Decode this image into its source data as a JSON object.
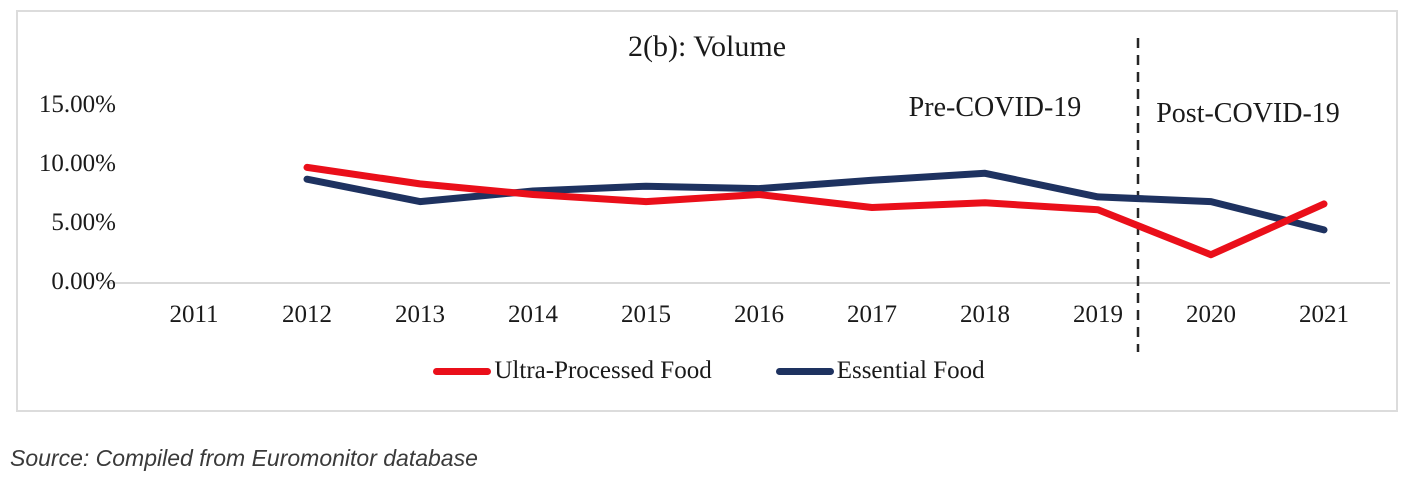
{
  "figure": {
    "source_note": "Source: Compiled from Euromonitor database"
  },
  "chart_data": {
    "type": "line",
    "title": "2(b): Volume",
    "unit": "percent",
    "categories": [
      "2011",
      "2012",
      "2013",
      "2014",
      "2015",
      "2016",
      "2017",
      "2018",
      "2019",
      "2020",
      "2021"
    ],
    "series": [
      {
        "name": "Ultra-Processed Food",
        "color": "#ea0f1a",
        "values": [
          null,
          9.8,
          8.4,
          7.5,
          6.9,
          7.5,
          6.4,
          6.8,
          6.2,
          2.4,
          6.7
        ]
      },
      {
        "name": "Essential Food",
        "color": "#1e3260",
        "values": [
          null,
          8.8,
          6.9,
          7.8,
          8.2,
          8.0,
          8.7,
          9.3,
          7.3,
          6.9,
          4.5
        ]
      }
    ],
    "y_tick_labels": [
      "15.00%",
      "10.00%",
      "5.00%",
      "0.00%"
    ],
    "y_tick_values": [
      15,
      10,
      5,
      0
    ],
    "ylim": [
      0,
      15
    ],
    "grid": "baseline-only",
    "legend_position": "bottom",
    "divider": {
      "x_position_between": [
        "2019",
        "2020"
      ],
      "label_left": "Pre-COVID-19",
      "label_right": "Post-COVID-19"
    }
  }
}
